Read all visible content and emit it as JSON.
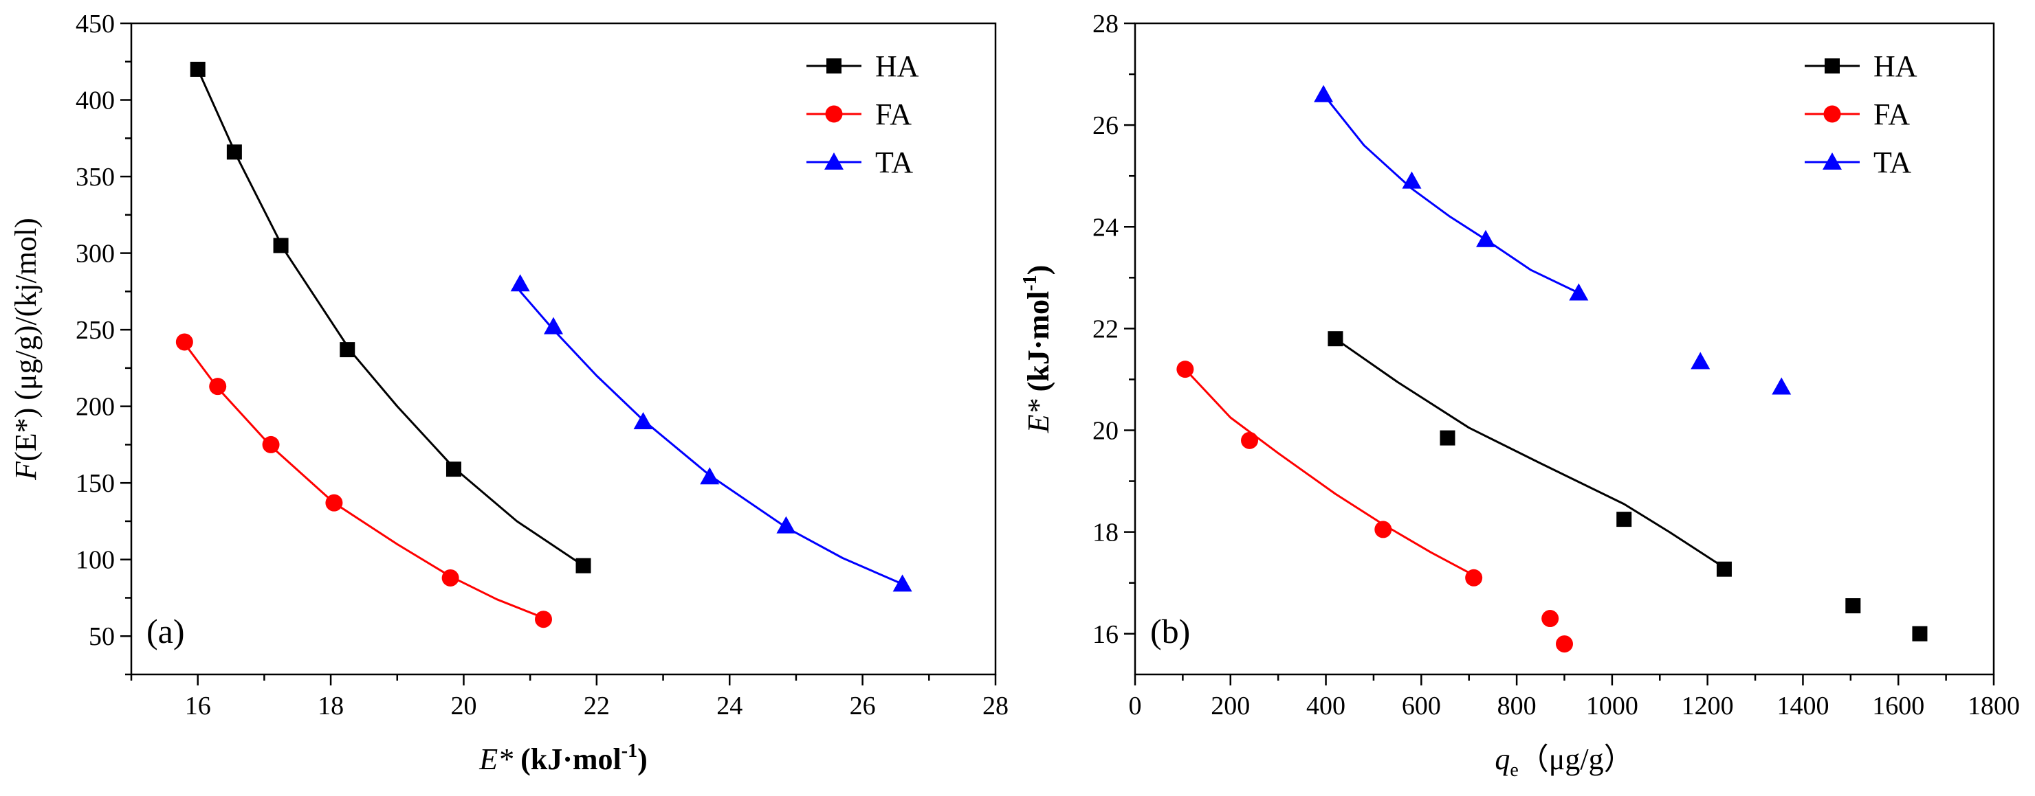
{
  "chart_data": [
    {
      "type": "scatter",
      "panel_label": "(a)",
      "ylabel": {
        "pre": "F",
        "post": "(E*) (μg/g)/(kj/mol)"
      },
      "xlabel": {
        "italic": "E*",
        "rest": " (kJ·mol",
        "sup": "-1",
        "close": ")"
      },
      "xlim": [
        15,
        28
      ],
      "ylim": [
        25,
        450
      ],
      "xticks": [
        16,
        18,
        20,
        22,
        24,
        26,
        28
      ],
      "yticks": [
        50,
        100,
        150,
        200,
        250,
        300,
        350,
        400,
        450
      ],
      "legend_position": "top-right",
      "series": [
        {
          "name": "HA",
          "color": "#000000",
          "marker": "square",
          "x": [
            16.0,
            16.55,
            17.25,
            18.25,
            19.85,
            21.8
          ],
          "y": [
            420,
            366,
            305,
            237,
            159,
            96
          ],
          "fit": [
            [
              16.0,
              420
            ],
            [
              16.6,
              362
            ],
            [
              17.3,
              302
            ],
            [
              18.3,
              236
            ],
            [
              19.0,
              200
            ],
            [
              19.85,
              160
            ],
            [
              20.8,
              125
            ],
            [
              21.8,
              96
            ]
          ]
        },
        {
          "name": "FA",
          "color": "#ff0000",
          "marker": "circle",
          "x": [
            15.8,
            16.3,
            17.1,
            18.05,
            19.8,
            21.2
          ],
          "y": [
            242,
            213,
            175,
            137,
            88,
            61
          ],
          "fit": [
            [
              15.8,
              241
            ],
            [
              16.3,
              212
            ],
            [
              17.1,
              174
            ],
            [
              18.05,
              137
            ],
            [
              19.0,
              110
            ],
            [
              19.8,
              89
            ],
            [
              20.5,
              74
            ],
            [
              21.2,
              62
            ]
          ]
        },
        {
          "name": "TA",
          "color": "#0000ff",
          "marker": "triangle",
          "x": [
            20.85,
            21.35,
            22.7,
            23.7,
            24.85,
            26.6
          ],
          "y": [
            280,
            252,
            190,
            154,
            122,
            84
          ],
          "fit": [
            [
              20.85,
              275
            ],
            [
              21.35,
              250
            ],
            [
              22.0,
              220
            ],
            [
              22.7,
              191
            ],
            [
              23.7,
              155
            ],
            [
              24.85,
              121
            ],
            [
              25.7,
              101
            ],
            [
              26.6,
              84
            ]
          ]
        }
      ]
    },
    {
      "type": "scatter",
      "panel_label": "(b)",
      "ylabel": {
        "italic": "E*",
        "rest": " (kJ·mol",
        "sup": "-1",
        "close": ")"
      },
      "xlabel": {
        "italic": "q",
        "sub": "e",
        "rest": "（μg/g）"
      },
      "xlim": [
        0,
        1800
      ],
      "ylim": [
        15.2,
        28
      ],
      "xticks": [
        0,
        200,
        400,
        600,
        800,
        1000,
        1200,
        1400,
        1600,
        1800
      ],
      "yticks": [
        16,
        18,
        20,
        22,
        24,
        26,
        28
      ],
      "legend_position": "top-right",
      "series": [
        {
          "name": "HA",
          "color": "#000000",
          "marker": "square",
          "x": [
            420,
            655,
            1025,
            1235,
            1505,
            1645
          ],
          "y": [
            21.8,
            19.85,
            18.25,
            17.27,
            16.55,
            16.0
          ],
          "fit": [
            [
              420,
              21.8
            ],
            [
              550,
              20.95
            ],
            [
              700,
              20.05
            ],
            [
              850,
              19.35
            ],
            [
              1025,
              18.55
            ],
            [
              1120,
              18.0
            ],
            [
              1235,
              17.3
            ]
          ]
        },
        {
          "name": "FA",
          "color": "#ff0000",
          "marker": "circle",
          "x": [
            105,
            240,
            520,
            710,
            870,
            900
          ],
          "y": [
            21.2,
            19.8,
            18.05,
            17.1,
            16.3,
            15.8
          ],
          "fit": [
            [
              105,
              21.2
            ],
            [
              200,
              20.25
            ],
            [
              300,
              19.55
            ],
            [
              420,
              18.75
            ],
            [
              520,
              18.15
            ],
            [
              620,
              17.6
            ],
            [
              710,
              17.15
            ]
          ]
        },
        {
          "name": "TA",
          "color": "#0000ff",
          "marker": "triangle",
          "x": [
            395,
            580,
            735,
            930,
            1185,
            1355
          ],
          "y": [
            26.6,
            24.9,
            23.75,
            22.7,
            21.35,
            20.85
          ],
          "fit": [
            [
              395,
              26.6
            ],
            [
              480,
              25.6
            ],
            [
              580,
              24.75
            ],
            [
              660,
              24.2
            ],
            [
              735,
              23.75
            ],
            [
              830,
              23.15
            ],
            [
              930,
              22.7
            ]
          ]
        }
      ]
    }
  ]
}
